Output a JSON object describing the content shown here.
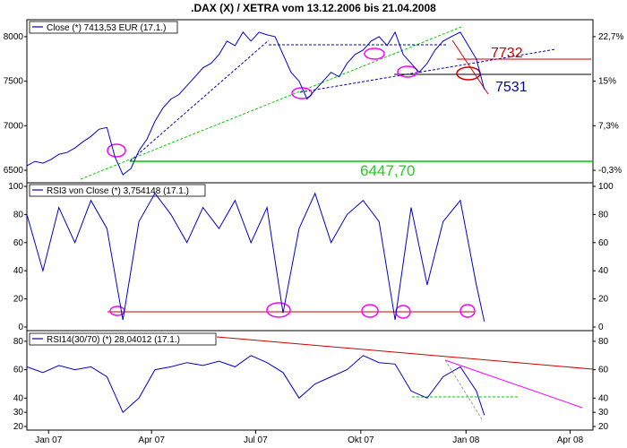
{
  "title": ".DAX (X) / XETRA vom 13.12.2006 bis 21.04.2008",
  "colors": {
    "series": "#0000cc",
    "green_line": "#00cc00",
    "red_line": "#cc0000",
    "magenta": "#ff00ff",
    "navy_dashed": "#0000aa",
    "frame": "#000000",
    "grid": "#c0c0c0"
  },
  "x_ticks": [
    "Jan 07",
    "Apr 07",
    "Jul 07",
    "Okt 07",
    "Jan 08",
    "Apr 08"
  ],
  "panels": {
    "price": {
      "legend": "Close (*) 7413,53 EUR (17.1.)",
      "y_left_ticks": [
        "6500",
        "7000",
        "7500",
        "8000"
      ],
      "y_right_ticks": [
        "-0,3%",
        "7,3%",
        "15%",
        "22,7%"
      ],
      "annotations": {
        "upper_resistance": "7732",
        "lower_support": "7531",
        "base_support": "6447,70"
      }
    },
    "rsi3": {
      "legend": "RSI3 von Close (*) 3,754148 (17.1.)",
      "y_ticks": [
        "0",
        "20",
        "40",
        "60",
        "80",
        "100"
      ]
    },
    "rsi14": {
      "legend": "RSI14(30/70) (*) 28,04012 (17.1.)",
      "y_ticks": [
        "20",
        "30",
        "40",
        "60",
        "80"
      ]
    }
  },
  "chart_data": [
    {
      "type": "line",
      "name": "price",
      "x": [
        "2006-12-13",
        "2006-12-20",
        "2006-12-27",
        "2007-01-03",
        "2007-01-10",
        "2007-01-17",
        "2007-01-24",
        "2007-01-31",
        "2007-02-07",
        "2007-02-14",
        "2007-02-21",
        "2007-02-28",
        "2007-03-07",
        "2007-03-14",
        "2007-03-21",
        "2007-03-28",
        "2007-04-04",
        "2007-04-11",
        "2007-04-18",
        "2007-04-25",
        "2007-05-02",
        "2007-05-09",
        "2007-05-16",
        "2007-05-23",
        "2007-05-30",
        "2007-06-06",
        "2007-06-13",
        "2007-06-20",
        "2007-06-27",
        "2007-07-04",
        "2007-07-11",
        "2007-07-18",
        "2007-07-25",
        "2007-08-01",
        "2007-08-08",
        "2007-08-15",
        "2007-08-22",
        "2007-08-29",
        "2007-09-05",
        "2007-09-12",
        "2007-09-19",
        "2007-09-26",
        "2007-10-03",
        "2007-10-10",
        "2007-10-17",
        "2007-10-24",
        "2007-10-31",
        "2007-11-07",
        "2007-11-14",
        "2007-11-21",
        "2007-11-28",
        "2007-12-05",
        "2007-12-12",
        "2007-12-19",
        "2007-12-27",
        "2008-01-03",
        "2008-01-10",
        "2008-01-17"
      ],
      "values": [
        6550,
        6600,
        6580,
        6620,
        6680,
        6700,
        6750,
        6820,
        6880,
        6960,
        6980,
        6650,
        6450,
        6520,
        6720,
        6850,
        7050,
        7200,
        7300,
        7350,
        7450,
        7550,
        7650,
        7700,
        7800,
        7950,
        7900,
        8050,
        7950,
        8050,
        8020,
        8000,
        7800,
        7600,
        7500,
        7300,
        7400,
        7500,
        7600,
        7550,
        7700,
        7800,
        7850,
        7950,
        8000,
        7900,
        8050,
        7800,
        7700,
        7600,
        7700,
        7850,
        7950,
        8000,
        8050,
        7900,
        7750,
        7410
      ],
      "xlim": [
        "2006-12-13",
        "2008-04-21"
      ],
      "ylim": [
        6400,
        8150
      ],
      "y_ticks": [
        6500,
        7000,
        7500,
        8000
      ],
      "y_right_ticks": [
        "-0,3%",
        "7,3%",
        "15%",
        "22,7%"
      ],
      "grid": false
    },
    {
      "type": "line",
      "name": "rsi3",
      "x": [
        "2006-12-13",
        "2006-12-27",
        "2007-01-10",
        "2007-01-24",
        "2007-02-07",
        "2007-02-21",
        "2007-03-07",
        "2007-03-21",
        "2007-04-04",
        "2007-04-18",
        "2007-05-02",
        "2007-05-16",
        "2007-05-30",
        "2007-06-13",
        "2007-06-27",
        "2007-07-11",
        "2007-07-25",
        "2007-08-08",
        "2007-08-22",
        "2007-09-05",
        "2007-09-19",
        "2007-10-03",
        "2007-10-17",
        "2007-10-31",
        "2007-11-14",
        "2007-11-28",
        "2007-12-12",
        "2007-12-27",
        "2008-01-10",
        "2008-01-17"
      ],
      "values": [
        80,
        40,
        85,
        60,
        90,
        70,
        5,
        75,
        95,
        80,
        60,
        85,
        70,
        90,
        60,
        85,
        10,
        70,
        95,
        60,
        80,
        90,
        75,
        5,
        85,
        30,
        75,
        90,
        30,
        4
      ],
      "xlim": [
        "2006-12-13",
        "2008-04-21"
      ],
      "ylim": [
        0,
        100
      ],
      "y_ticks": [
        0,
        20,
        40,
        60,
        80,
        100
      ],
      "grid": false
    },
    {
      "type": "line",
      "name": "rsi14",
      "x": [
        "2006-12-13",
        "2006-12-27",
        "2007-01-10",
        "2007-01-24",
        "2007-02-07",
        "2007-02-21",
        "2007-03-07",
        "2007-03-21",
        "2007-04-04",
        "2007-04-18",
        "2007-05-02",
        "2007-05-16",
        "2007-05-30",
        "2007-06-13",
        "2007-06-27",
        "2007-07-11",
        "2007-07-25",
        "2007-08-08",
        "2007-08-22",
        "2007-09-05",
        "2007-09-19",
        "2007-10-03",
        "2007-10-17",
        "2007-10-31",
        "2007-11-14",
        "2007-11-28",
        "2007-12-12",
        "2007-12-27",
        "2008-01-10",
        "2008-01-17"
      ],
      "values": [
        62,
        58,
        63,
        60,
        62,
        55,
        30,
        40,
        60,
        62,
        65,
        63,
        66,
        62,
        70,
        65,
        58,
        40,
        50,
        55,
        60,
        70,
        65,
        64,
        45,
        40,
        55,
        62,
        45,
        28
      ],
      "xlim": [
        "2006-12-13",
        "2008-04-21"
      ],
      "ylim": [
        20,
        85
      ],
      "y_ticks": [
        20,
        30,
        40,
        60,
        80
      ],
      "grid": false
    }
  ]
}
